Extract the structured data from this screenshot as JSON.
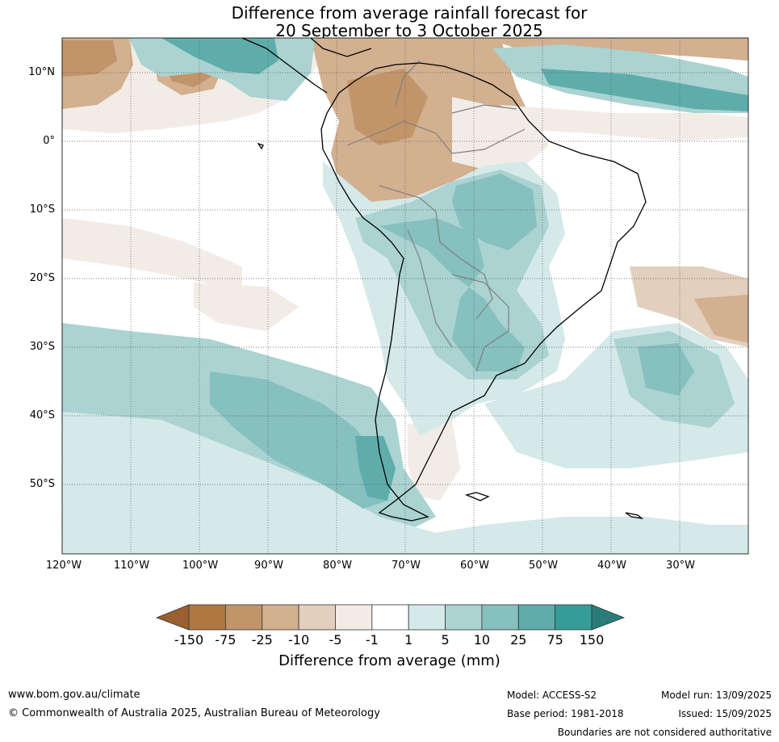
{
  "title": {
    "line1": "Difference from average rainfall forecast for",
    "line2": "20 September to 3 October 2025"
  },
  "map": {
    "latitude_labels": [
      "10°N",
      "0°",
      "10°S",
      "20°S",
      "30°S",
      "40°S",
      "50°S"
    ],
    "longitude_labels": [
      "120°W",
      "110°W",
      "100°W",
      "90°W",
      "80°W",
      "70°W",
      "60°W",
      "50°W",
      "40°W",
      "30°W"
    ],
    "colors": {
      "land_line": "#000000",
      "border_line": "#808080",
      "grid_line": "#555555"
    }
  },
  "legend": {
    "tick_labels": [
      "-150",
      "-75",
      "-25",
      "-10",
      "-5",
      "-1",
      "1",
      "5",
      "10",
      "25",
      "75",
      "150"
    ],
    "colors": [
      "#9b6030",
      "#b07840",
      "#c29469",
      "#d2b090",
      "#e2cfbd",
      "#f2ece6",
      "#ffffff",
      "#d4e9e8",
      "#aad3d2",
      "#86c0bf",
      "#5eadab",
      "#369c98",
      "#2a7c79"
    ],
    "label": "Difference from average (mm)"
  },
  "footer": {
    "website": "www.bom.gov.au/climate",
    "copyright": "© Commonwealth of Australia 2025, Australian Bureau of Meteorology",
    "model": "Model: ACCESS-S2",
    "base_period": "Base period: 1981-2018",
    "model_run": "Model run: 13/09/2025",
    "issued": "Issued: 15/09/2025",
    "disclaimer": "Boundaries are not considered authoritative"
  }
}
